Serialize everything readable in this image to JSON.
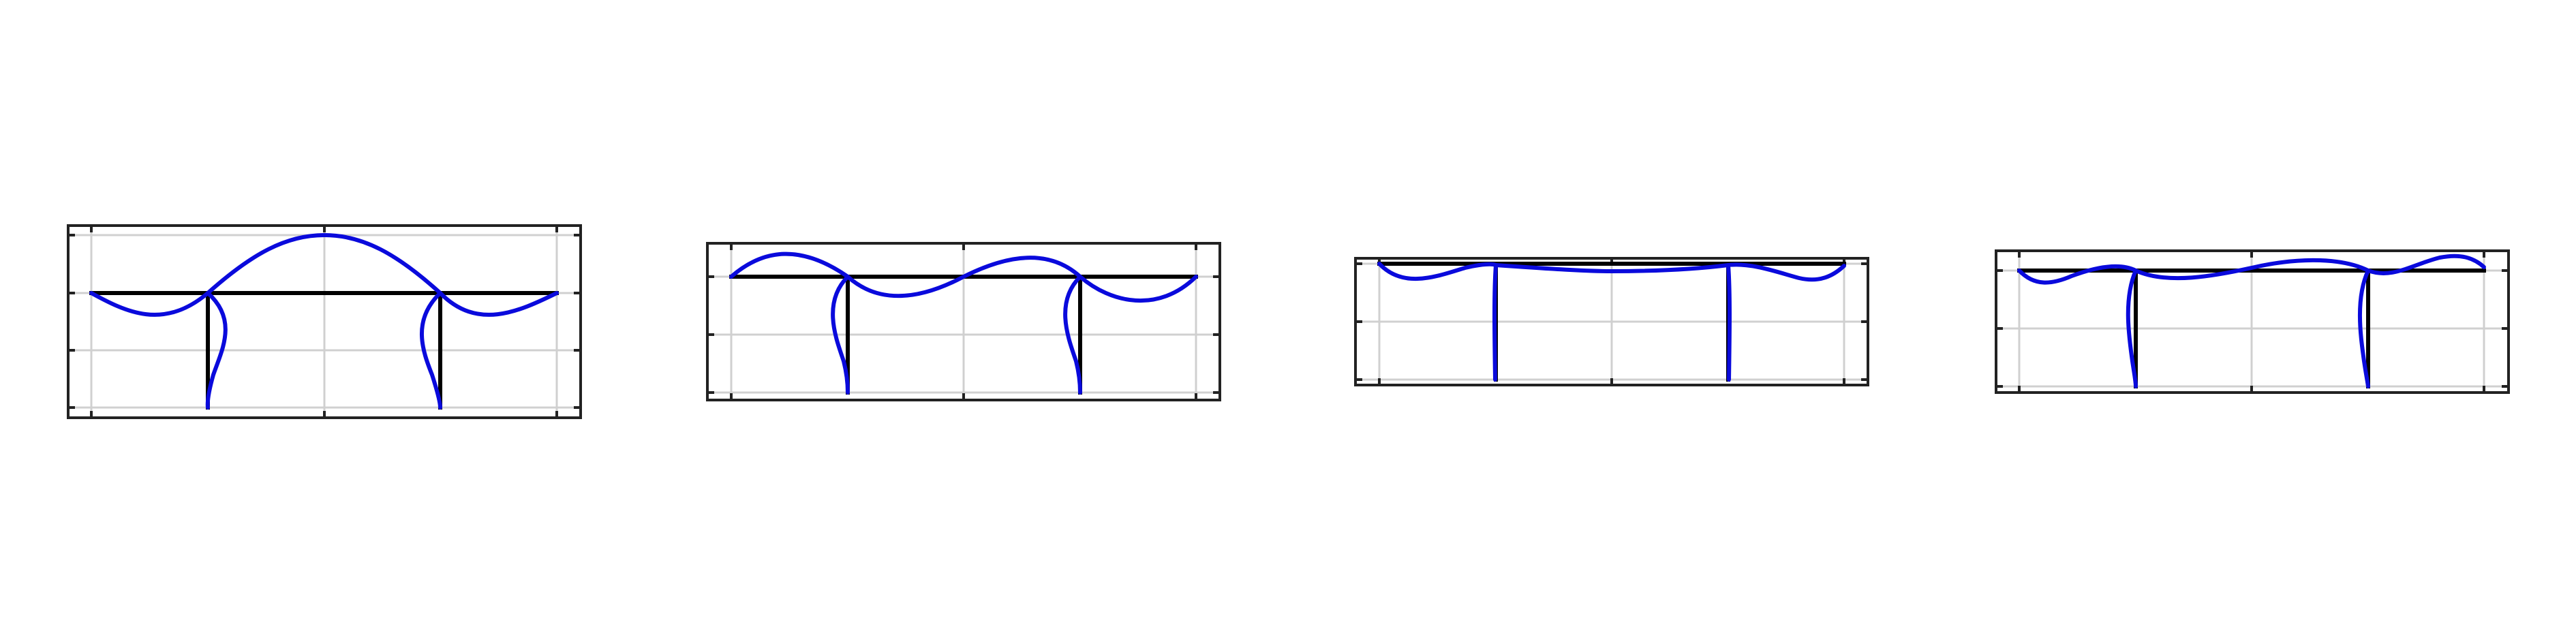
{
  "figure": {
    "panel_count": 4,
    "colors": {
      "frame": "#222222",
      "grid": "#d0d0d0",
      "structure": "#000000",
      "mode_shape": "#0a0adc"
    },
    "grid": true,
    "panels": [
      {
        "id": "mode-1",
        "description_free": true
      },
      {
        "id": "mode-2",
        "description_free": true
      },
      {
        "id": "mode-3",
        "description_free": true
      },
      {
        "id": "mode-4",
        "description_free": true
      }
    ]
  }
}
